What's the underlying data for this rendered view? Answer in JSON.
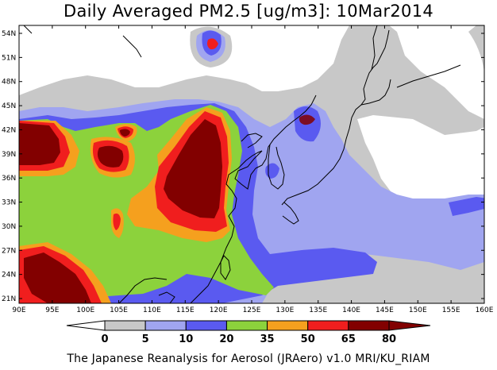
{
  "title": "Daily Averaged PM2.5 [ug/m3]: 10Mar2014",
  "footer": "The Japanese Reanalysis for Aerosol (JRAero) v1.0 MRI/KU_RIAM",
  "lon_ticks": [
    "90E",
    "95E",
    "100E",
    "105E",
    "110E",
    "115E",
    "120E",
    "125E",
    "130E",
    "135E",
    "140E",
    "145E",
    "150E",
    "155E",
    "160E"
  ],
  "lat_ticks": [
    "54N",
    "51N",
    "48N",
    "45N",
    "42N",
    "39N",
    "36N",
    "33N",
    "30N",
    "27N",
    "24N",
    "21N"
  ],
  "colorbar": {
    "labels": [
      "0",
      "5",
      "10",
      "20",
      "35",
      "50",
      "65",
      "80"
    ],
    "colors": [
      "#ffffff",
      "#c8c8c8",
      "#a0a5f0",
      "#5a5af0",
      "#8cd23c",
      "#f5a01e",
      "#f01e1e",
      "#820000"
    ]
  },
  "map": {
    "lon_range": [
      90,
      160
    ],
    "lat_range": [
      20,
      55
    ],
    "colors": {
      "lvl0": "#ffffff",
      "lvl5": "#c8c8c8",
      "lvl10": "#a0a5f0",
      "lvl20": "#5a5af0",
      "lvl35": "#8cd23c",
      "lvl50": "#f5a01e",
      "lvl65": "#f01e1e",
      "lvl80": "#820000",
      "coast": "#000000"
    }
  }
}
